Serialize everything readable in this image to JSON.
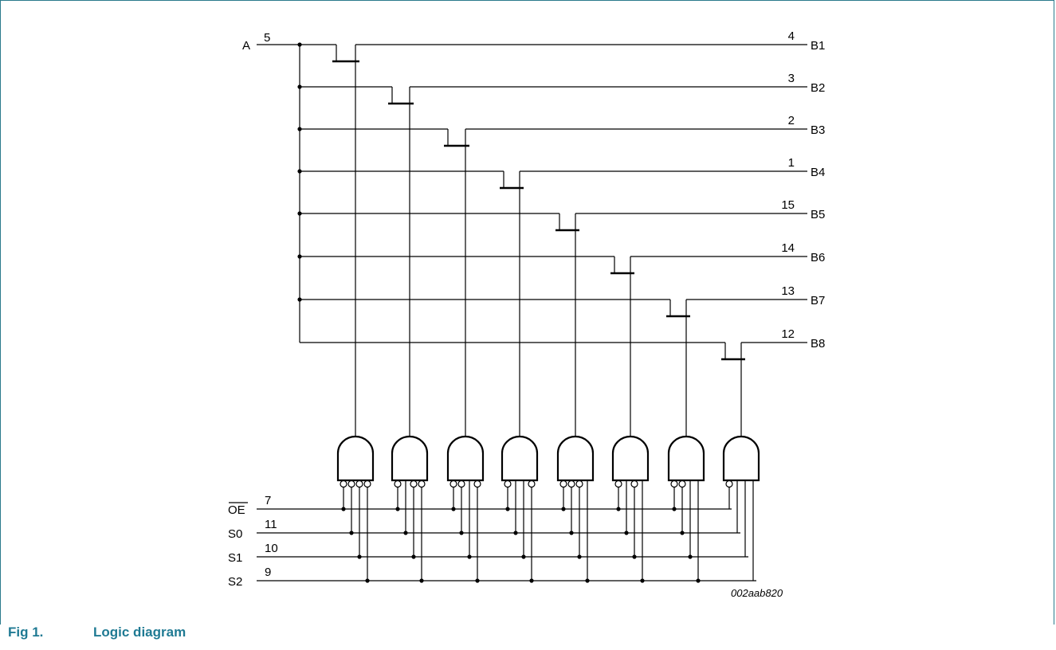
{
  "input_a": {
    "label": "A",
    "pin": "5"
  },
  "outputs": [
    {
      "label": "B1",
      "pin": "4"
    },
    {
      "label": "B2",
      "pin": "3"
    },
    {
      "label": "B3",
      "pin": "2"
    },
    {
      "label": "B4",
      "pin": "1"
    },
    {
      "label": "B5",
      "pin": "15"
    },
    {
      "label": "B6",
      "pin": "14"
    },
    {
      "label": "B7",
      "pin": "13"
    },
    {
      "label": "B8",
      "pin": "12"
    }
  ],
  "controls": [
    {
      "label": "OE",
      "pin": "7",
      "overbar": true
    },
    {
      "label": "S0",
      "pin": "11"
    },
    {
      "label": "S1",
      "pin": "10"
    },
    {
      "label": "S2",
      "pin": "9"
    }
  ],
  "gate_inversions": [
    [
      true,
      true,
      true,
      true
    ],
    [
      true,
      false,
      true,
      true
    ],
    [
      true,
      true,
      false,
      true
    ],
    [
      true,
      false,
      false,
      true
    ],
    [
      true,
      true,
      true,
      false
    ],
    [
      true,
      false,
      true,
      false
    ],
    [
      true,
      true,
      false,
      false
    ],
    [
      true,
      false,
      false,
      false
    ]
  ],
  "diagram_code": "002aab820",
  "caption": {
    "number": "Fig 1.",
    "title": "Logic diagram"
  },
  "colors": {
    "frame": "#2b7a8c",
    "caption": "#1f7a93",
    "line": "#000000"
  }
}
